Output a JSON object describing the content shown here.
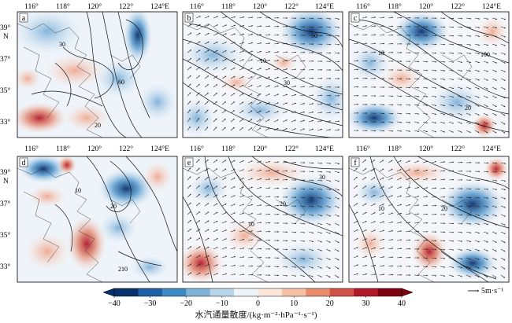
{
  "figure": {
    "lon_labels": [
      "116°",
      "118°",
      "120°",
      "122°",
      "124°E"
    ],
    "lat_labels": [
      "39°",
      "37°",
      "35°",
      "33°"
    ],
    "lat_unit": "N",
    "panels": [
      {
        "label": "a",
        "contour_labels": [
          "30",
          "60",
          "20"
        ]
      },
      {
        "label": "b",
        "contour_labels": [
          "10",
          "30",
          "50"
        ]
      },
      {
        "label": "c",
        "contour_labels": [
          "100",
          "20",
          "10"
        ]
      },
      {
        "label": "d",
        "contour_labels": [
          "10",
          "20",
          "210"
        ]
      },
      {
        "label": "e",
        "contour_labels": [
          "10",
          "20",
          "30"
        ]
      },
      {
        "label": "f",
        "contour_labels": [
          "10",
          "20"
        ]
      }
    ],
    "wind_scale_label": "5m·s⁻¹",
    "colorbar": {
      "ticks": [
        "−40",
        "−30",
        "−20",
        "−10",
        "0",
        "10",
        "20",
        "30",
        "40"
      ],
      "colors": [
        "#08306b",
        "#1f5fa8",
        "#3f8bc6",
        "#7fb3d8",
        "#b8d5ea",
        "#eef4fa",
        "#fbe6da",
        "#f5bfa4",
        "#ea8b6e",
        "#d15149",
        "#b2182b",
        "#7f0010"
      ],
      "caption": "水汽通量散度/(kg·m⁻²·hPa⁻¹·s⁻¹)"
    }
  }
}
